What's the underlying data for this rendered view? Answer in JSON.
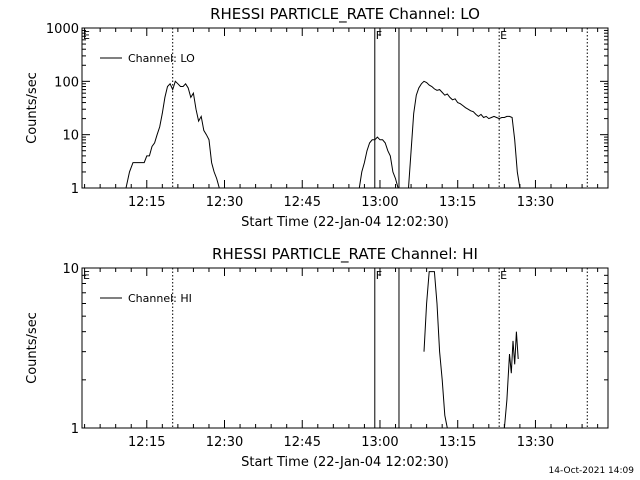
{
  "chart_data": [
    {
      "type": "line",
      "title": "RHESSI PARTICLE_RATE Channel: LO",
      "xlabel": "Start Time (22-Jan-04 12:02:30)",
      "ylabel": "Counts/sec",
      "y_scale": "log",
      "ylim": [
        1,
        1000
      ],
      "xlim": [
        "12:02:30",
        "13:44:00"
      ],
      "x_tick_labels": [
        "12:15",
        "12:30",
        "12:45",
        "13:00",
        "13:15",
        "13:30"
      ],
      "x_ticks": [
        "12:15",
        "12:30",
        "12:45",
        "13:00",
        "13:15",
        "13:30"
      ],
      "y_tick_labels": [
        "1",
        "10",
        "100",
        "1000"
      ],
      "y_ticks": [
        1,
        10,
        100,
        1000
      ],
      "grid": false,
      "legend": {
        "position": "top-left",
        "entries": [
          "Channel: LO"
        ]
      },
      "series": [
        {
          "name": "Channel: LO",
          "segments": [
            {
              "x": [
                "12:11:00",
                "12:11:40",
                "12:12:20",
                "12:13:00",
                "12:13:30",
                "12:14:00",
                "12:14:30",
                "12:15:00",
                "12:15:30",
                "12:16:00",
                "12:16:30",
                "12:17:00",
                "12:17:30",
                "12:18:00",
                "12:18:30",
                "12:19:00",
                "12:19:30",
                "12:20:00",
                "12:20:30",
                "12:21:00",
                "12:21:30",
                "12:22:00",
                "12:22:30",
                "12:23:00",
                "12:23:30",
                "12:24:00",
                "12:24:30",
                "12:25:00",
                "12:25:30",
                "12:26:00",
                "12:26:30",
                "12:27:00",
                "12:27:30",
                "12:28:00",
                "12:28:30",
                "12:29:00",
                "12:29:30",
                "12:30:00"
              ],
              "y": [
                1,
                2,
                3,
                3,
                3,
                3,
                3,
                4,
                4,
                6,
                7,
                10,
                14,
                25,
                50,
                80,
                90,
                70,
                100,
                90,
                80,
                80,
                90,
                75,
                50,
                60,
                30,
                18,
                22,
                12,
                10,
                8,
                3,
                2,
                1.5,
                1,
                1,
                1
              ]
            },
            {
              "x": [
                "12:56:00",
                "12:56:30",
                "12:57:00",
                "12:57:30",
                "12:58:00",
                "12:58:30",
                "12:59:00",
                "12:59:30",
                "13:00:00",
                "13:00:30",
                "13:01:00",
                "13:01:30",
                "13:02:00",
                "13:02:30",
                "13:03:00",
                "13:03:30"
              ],
              "y": [
                1,
                2,
                3,
                5,
                7,
                8,
                8,
                9,
                8,
                8,
                7,
                5,
                4,
                2,
                1.5,
                1
              ]
            },
            {
              "x": [
                "13:05:30",
                "13:06:00",
                "13:06:30",
                "13:07:00",
                "13:07:30",
                "13:08:00",
                "13:08:30",
                "13:09:00",
                "13:09:30",
                "13:10:00",
                "13:10:30",
                "13:11:00",
                "13:11:30",
                "13:12:00",
                "13:12:30",
                "13:13:00",
                "13:13:30",
                "13:14:00",
                "13:14:30",
                "13:15:00",
                "13:15:30",
                "13:16:00",
                "13:16:30",
                "13:17:00",
                "13:17:30",
                "13:18:00",
                "13:18:30",
                "13:19:00",
                "13:19:30",
                "13:20:00",
                "13:20:30",
                "13:21:00",
                "13:21:30",
                "13:22:00",
                "13:22:30",
                "13:23:00",
                "13:23:30",
                "13:24:00",
                "13:24:30",
                "13:25:00",
                "13:25:30",
                "13:26:00",
                "13:26:30",
                "13:27:00"
              ],
              "y": [
                1,
                5,
                25,
                55,
                75,
                90,
                100,
                95,
                85,
                80,
                72,
                68,
                70,
                62,
                55,
                58,
                50,
                45,
                47,
                40,
                38,
                35,
                32,
                30,
                28,
                27,
                24,
                22,
                24,
                21,
                22,
                20,
                21,
                22,
                21,
                20,
                21,
                21,
                22,
                22,
                21,
                8,
                2,
                1
              ]
            }
          ]
        }
      ],
      "annotations": [
        {
          "label": "E",
          "x": "12:02:30",
          "style": "dotted"
        },
        {
          "label": "",
          "x": "12:20:00",
          "style": "dotted"
        },
        {
          "label": "F",
          "x": "12:59:00",
          "style": "solid"
        },
        {
          "label": "",
          "x": "13:03:40",
          "style": "solid"
        },
        {
          "label": "E",
          "x": "13:23:00",
          "style": "dotted"
        },
        {
          "label": "",
          "x": "13:40:00",
          "style": "dotted"
        }
      ]
    },
    {
      "type": "line",
      "title": "RHESSI PARTICLE_RATE Channel: HI",
      "xlabel": "Start Time (22-Jan-04 12:02:30)",
      "ylabel": "Counts/sec",
      "y_scale": "log",
      "ylim": [
        1,
        10
      ],
      "xlim": [
        "12:02:30",
        "13:44:00"
      ],
      "x_tick_labels": [
        "12:15",
        "12:30",
        "12:45",
        "13:00",
        "13:15",
        "13:30"
      ],
      "x_ticks": [
        "12:15",
        "12:30",
        "12:45",
        "13:00",
        "13:15",
        "13:30"
      ],
      "y_tick_labels": [
        "1",
        "10"
      ],
      "y_ticks": [
        1,
        10
      ],
      "grid": false,
      "legend": {
        "position": "top-left",
        "entries": [
          "Channel: HI"
        ]
      },
      "series": [
        {
          "name": "Channel: HI",
          "segments": [
            {
              "x": [
                "13:08:30",
                "13:09:00",
                "13:09:30",
                "13:10:00",
                "13:10:30",
                "13:11:00",
                "13:11:30",
                "13:12:00",
                "13:12:30",
                "13:13:00"
              ],
              "y": [
                3.0,
                6.0,
                9.5,
                9.5,
                9.5,
                6.0,
                3.0,
                2.0,
                1.2,
                1.0
              ]
            },
            {
              "x": [
                "13:24:00",
                "13:24:30",
                "13:25:00",
                "13:25:20",
                "13:25:40",
                "13:26:00",
                "13:26:20",
                "13:26:40"
              ],
              "y": [
                1.0,
                1.5,
                2.9,
                2.2,
                3.5,
                2.5,
                4.0,
                2.7
              ]
            }
          ]
        }
      ],
      "annotations": [
        {
          "label": "E",
          "x": "12:02:30",
          "style": "dotted"
        },
        {
          "label": "",
          "x": "12:20:00",
          "style": "dotted"
        },
        {
          "label": "F",
          "x": "12:59:00",
          "style": "solid"
        },
        {
          "label": "",
          "x": "13:03:40",
          "style": "solid"
        },
        {
          "label": "E",
          "x": "13:23:00",
          "style": "dotted"
        },
        {
          "label": "",
          "x": "13:40:00",
          "style": "dotted"
        }
      ]
    }
  ],
  "footer": {
    "timestamp": "14-Oct-2021 14:09"
  }
}
